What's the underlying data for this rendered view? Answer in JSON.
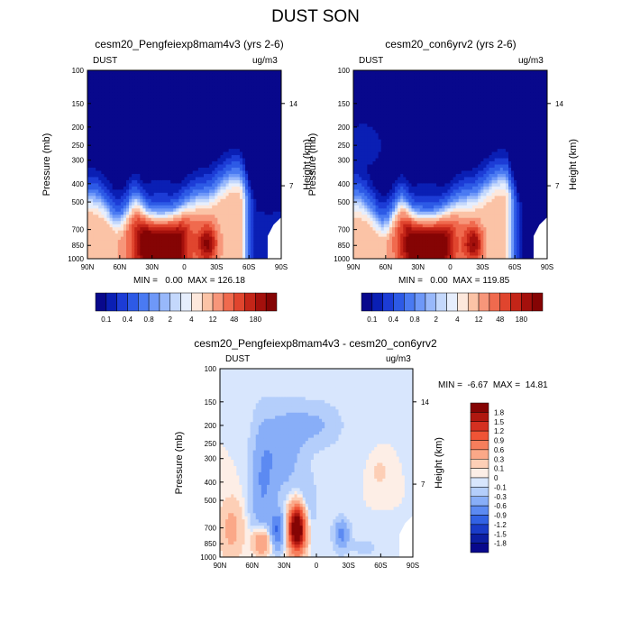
{
  "page_title": "DUST SON",
  "colors": {
    "white": "#ffffff"
  },
  "chart_data": [
    {
      "type": "heatmap",
      "id": "p1",
      "title": "cesm20_Pengfeiexp8mam4v3 (yrs 2-6)",
      "left_label": "DUST",
      "units": "ug/m3",
      "ylabel": "Pressure (mb)",
      "y2label": "Height (km)",
      "xticks": [
        "90N",
        "60N",
        "30N",
        "0",
        "30S",
        "60S",
        "90S"
      ],
      "yticks": [
        "100",
        "150",
        "200",
        "250",
        "300",
        "400",
        "500",
        "700",
        "850",
        "1000"
      ],
      "y2ticks": [
        "14",
        "7"
      ],
      "stats": "MIN =   0.00  MAX = 126.18",
      "min": 0.0,
      "max": 126.18,
      "colorbar_labels": [
        "0.1",
        "0.4",
        "0.8",
        "2",
        "4",
        "12",
        "48",
        "180"
      ],
      "palette": [
        "#08088c",
        "#0a1fb4",
        "#1c3cd6",
        "#2d5ae6",
        "#4a7af2",
        "#6e98f8",
        "#98b8fb",
        "#c4d8fc",
        "#e6eefd",
        "#fde8dc",
        "#fbc3a6",
        "#f7967a",
        "#f06a4e",
        "#e0452e",
        "#c42518",
        "#a4100c",
        "#850404"
      ]
    },
    {
      "type": "heatmap",
      "id": "p2",
      "title": "cesm20_con6yrv2 (yrs 2-6)",
      "left_label": "DUST",
      "units": "ug/m3",
      "ylabel": "Pressure (mb)",
      "y2label": "Height (km)",
      "xticks": [
        "90N",
        "60N",
        "30N",
        "0",
        "30S",
        "60S",
        "90S"
      ],
      "yticks": [
        "100",
        "150",
        "200",
        "250",
        "300",
        "400",
        "500",
        "700",
        "850",
        "1000"
      ],
      "y2ticks": [
        "14",
        "7"
      ],
      "stats": "MIN =   0.00  MAX = 119.85",
      "min": 0.0,
      "max": 119.85,
      "colorbar_labels": [
        "0.1",
        "0.4",
        "0.8",
        "2",
        "4",
        "12",
        "48",
        "180"
      ],
      "palette": [
        "#08088c",
        "#0a1fb4",
        "#1c3cd6",
        "#2d5ae6",
        "#4a7af2",
        "#6e98f8",
        "#98b8fb",
        "#c4d8fc",
        "#e6eefd",
        "#fde8dc",
        "#fbc3a6",
        "#f7967a",
        "#f06a4e",
        "#e0452e",
        "#c42518",
        "#a4100c",
        "#850404"
      ]
    },
    {
      "type": "heatmap",
      "id": "p3",
      "title": "cesm20_Pengfeiexp8mam4v3 - cesm20_con6yrv2",
      "left_label": "DUST",
      "units": "ug/m3",
      "ylabel": "Pressure (mb)",
      "y2label": "Height (km)",
      "xticks": [
        "90N",
        "60N",
        "30N",
        "0",
        "30S",
        "60S",
        "90S"
      ],
      "yticks": [
        "100",
        "150",
        "200",
        "250",
        "300",
        "400",
        "500",
        "700",
        "850",
        "1000"
      ],
      "y2ticks": [
        "14",
        "7"
      ],
      "stats": "MIN =  -6.67  MAX =  14.81",
      "min": -6.67,
      "max": 14.81,
      "colorbar_labels": [
        "1.8",
        "1.5",
        "1.2",
        "0.9",
        "0.6",
        "0.3",
        "0.1",
        "0",
        "-0.1",
        "-0.3",
        "-0.6",
        "-0.9",
        "-1.2",
        "-1.5",
        "-1.8"
      ],
      "palette": [
        "#850404",
        "#b01810",
        "#d43020",
        "#ef5436",
        "#f67e5c",
        "#fba888",
        "#fdcfb6",
        "#fdeee6",
        "#d8e6fd",
        "#b4cefb",
        "#88aef8",
        "#5c8af2",
        "#3262e4",
        "#1a3cc8",
        "#0c1ea2",
        "#08088c"
      ]
    }
  ]
}
